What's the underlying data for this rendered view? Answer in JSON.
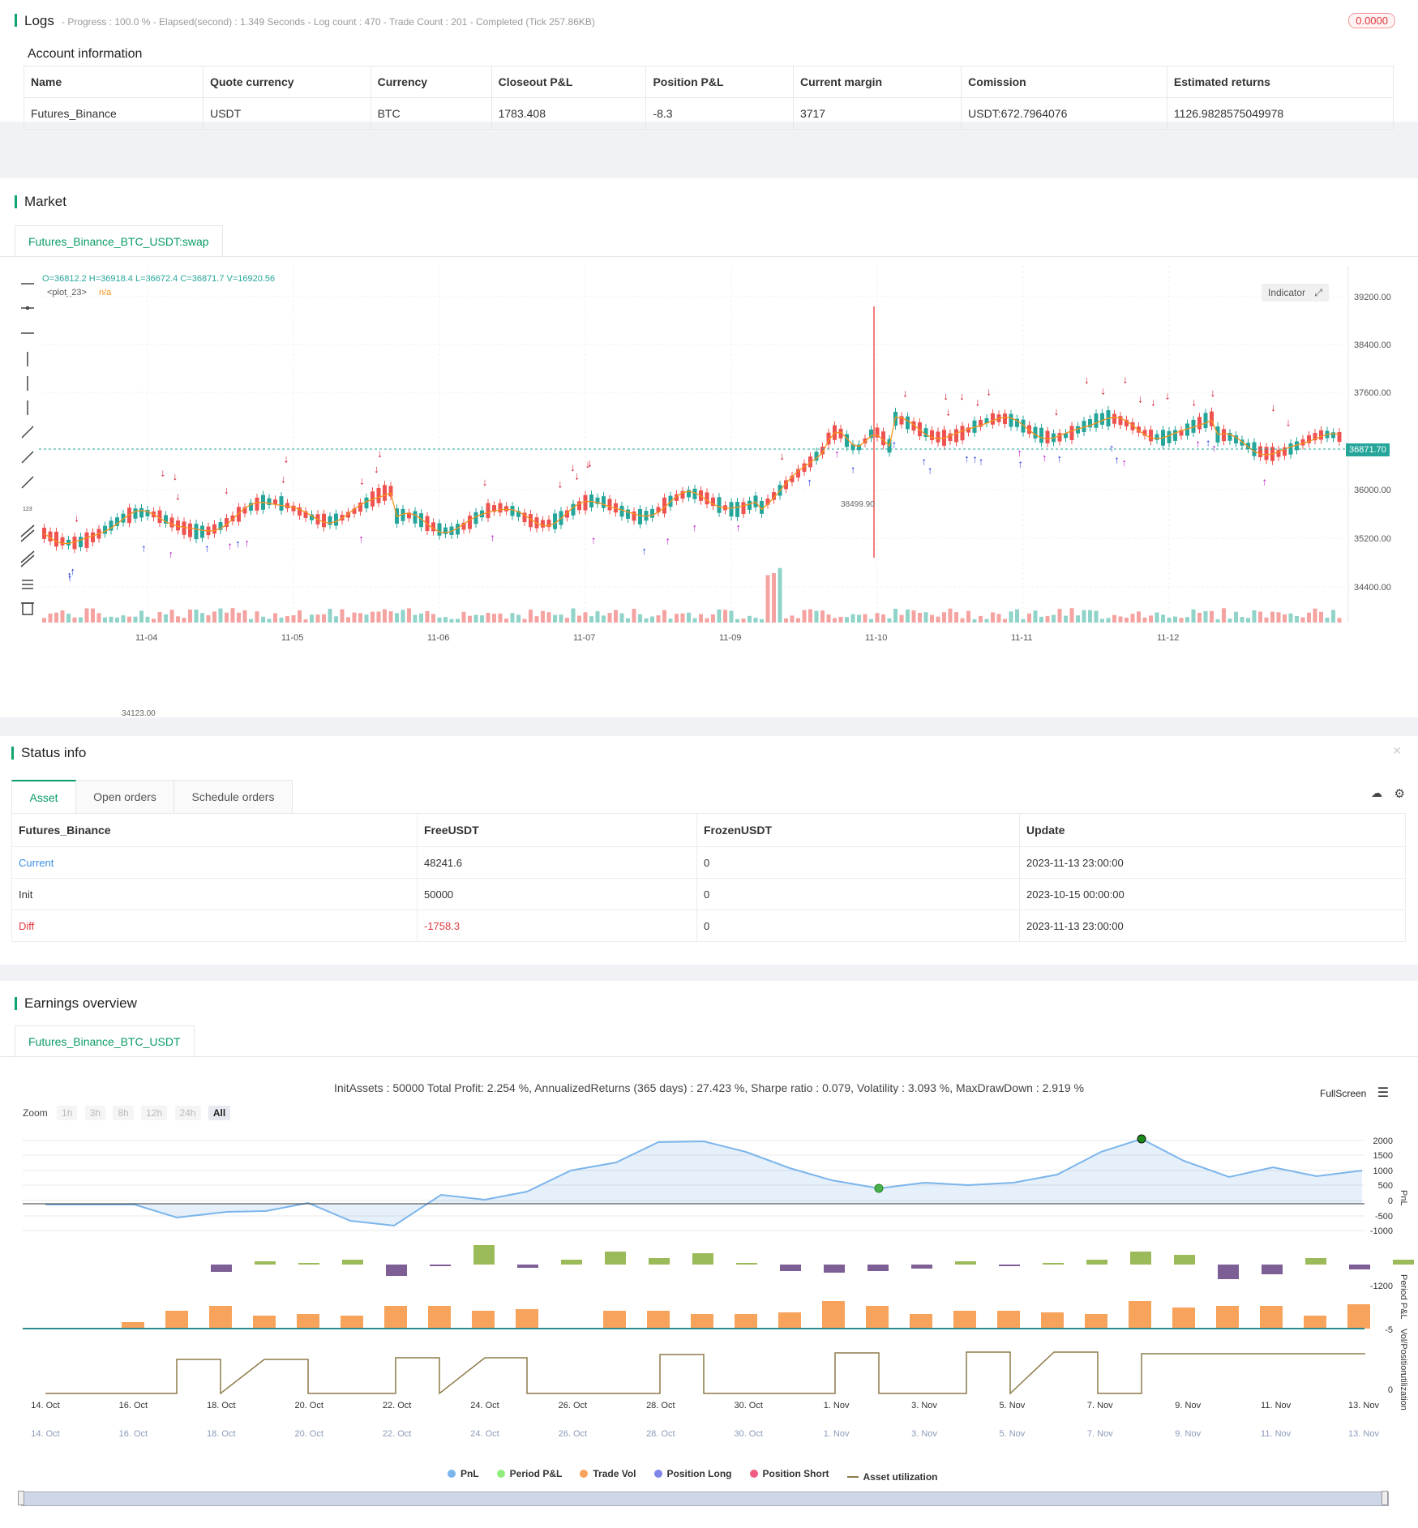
{
  "logs": {
    "title": "Logs",
    "summary": "- Progress : 100.0 % - Elapsed(second) : 1.349 Seconds - Log count : 470 - Trade Count : 201 - Completed (Tick 257.86KB)",
    "badge": "0.0000"
  },
  "account": {
    "title": "Account information",
    "headers": [
      "Name",
      "Quote currency",
      "Currency",
      "Closeout P&L",
      "Position P&L",
      "Current margin",
      "Comission",
      "Estimated returns"
    ],
    "row": [
      "Futures_Binance",
      "USDT",
      "BTC",
      "1783.408",
      "-8.3",
      "3717",
      "USDT:672.7964076",
      "1126.9828575049978"
    ]
  },
  "market": {
    "title": "Market",
    "tab": "Futures_Binance_BTC_USDT:swap",
    "ohlc": "O=36812.2 H=36918.4 L=36672.4 C=36871.7 V=16920.56",
    "plot_label": "<plot_23>",
    "plot_value": "n/a",
    "indicator_btn": "Indicator",
    "price_tag": "36871.70",
    "high_label": "38499.90",
    "low_label": "34123.00",
    "y_ticks": [
      "39200.00",
      "38400.00",
      "37600.00",
      "36000.00",
      "35200.00",
      "34400.00"
    ],
    "x_ticks": [
      "11-04",
      "11-05",
      "11-06",
      "11-07",
      "11-09",
      "11-10",
      "11-11",
      "11-12"
    ]
  },
  "status": {
    "title": "Status info",
    "tabs": [
      "Asset",
      "Open orders",
      "Schedule orders"
    ],
    "headers": [
      "Futures_Binance",
      "FreeUSDT",
      "FrozenUSDT",
      "Update"
    ],
    "rows": [
      [
        "Current",
        "48241.6",
        "0",
        "2023-11-13 23:00:00"
      ],
      [
        "Init",
        "50000",
        "0",
        "2023-10-15 00:00:00"
      ],
      [
        "Diff",
        "-1758.3",
        "0",
        "2023-11-13 23:00:00"
      ]
    ]
  },
  "earnings": {
    "title": "Earnings overview",
    "tab": "Futures_Binance_BTC_USDT",
    "summary": "InitAssets : 50000 Total Profit: 2.254 %, AnnualizedReturns (365 days) : 27.423 %, Sharpe ratio : 0.079, Volatility : 3.093 %, MaxDrawDown : 2.919 %",
    "fullscreen": "FullScreen",
    "zoom_label": "Zoom",
    "zoom_buttons": [
      "1h",
      "3h",
      "8h",
      "12h",
      "24h",
      "All"
    ],
    "pnl_ticks": [
      "2000",
      "1500",
      "1000",
      "500",
      "0",
      "-500",
      "-1000"
    ],
    "period_tick": "-1200",
    "vol_tick": "-5",
    "util_tick": "0",
    "axis_labels": [
      "PnL",
      "Period P&L",
      "Vol/Position",
      "utilization"
    ],
    "x_ticks": [
      "14. Oct",
      "16. Oct",
      "18. Oct",
      "20. Oct",
      "22. Oct",
      "24. Oct",
      "26. Oct",
      "28. Oct",
      "30. Oct",
      "1. Nov",
      "3. Nov",
      "5. Nov",
      "7. Nov",
      "9. Nov",
      "11. Nov",
      "13. Nov"
    ],
    "legend": [
      {
        "name": "PnL",
        "color": "#7cb5ec"
      },
      {
        "name": "Period P&L",
        "color": "#90ed7d"
      },
      {
        "name": "Trade Vol",
        "color": "#f7a35c"
      },
      {
        "name": "Position Long",
        "color": "#8085e9"
      },
      {
        "name": "Position Short",
        "color": "#f15c80"
      },
      {
        "name": "Asset utilization",
        "color": "#8d7b4a"
      }
    ]
  }
}
